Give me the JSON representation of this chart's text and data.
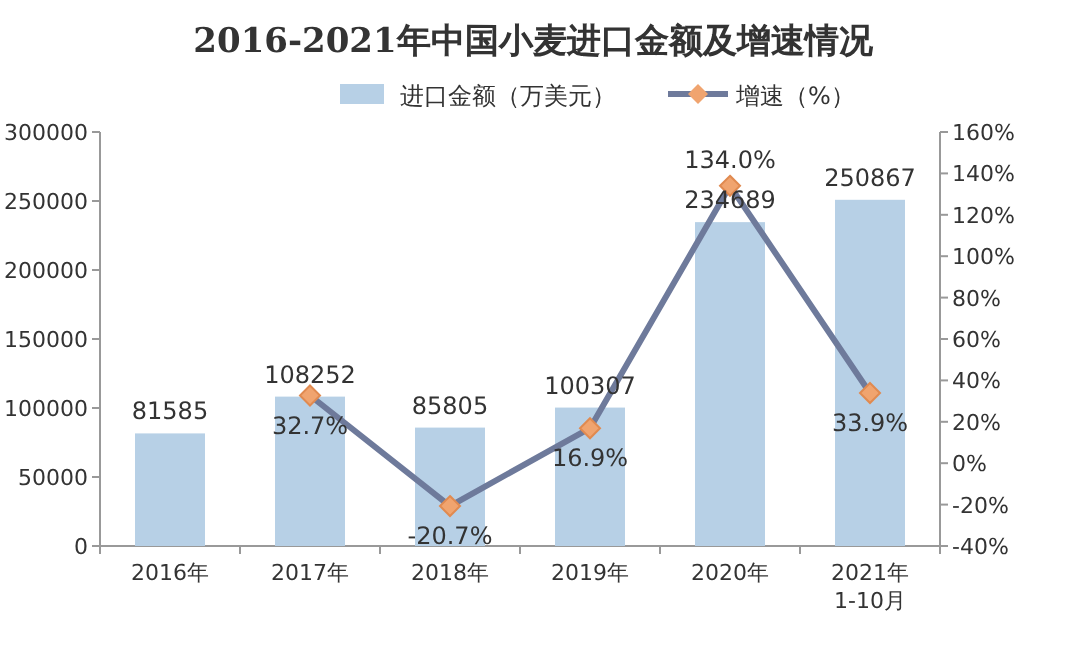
{
  "chart_data": {
    "type": "bar",
    "title": "2016-2021年中国小麦进口金额及增速情况",
    "categories": [
      "2016年",
      "2017年",
      "2018年",
      "2019年",
      "2020年",
      "2021年\n1-10月"
    ],
    "series": [
      {
        "name": "进口金额（万美元）",
        "color": "#b7d0e6",
        "values": [
          81585,
          108252,
          85805,
          100307,
          234689,
          250867
        ],
        "value_labels": [
          "81585",
          "108252",
          "85805",
          "100307",
          "234689",
          "250867"
        ]
      },
      {
        "name": "增速（%）",
        "type": "line",
        "axis": "y2",
        "color": "#6e7a9b",
        "marker": "diamond",
        "values": [
          null,
          32.7,
          -20.7,
          16.9,
          134.0,
          33.9
        ],
        "value_labels": [
          null,
          "32.7%",
          "-20.7%",
          "16.9%",
          "134.0%",
          "33.9%"
        ]
      }
    ],
    "ylim": [
      0,
      300000
    ],
    "yticks": [
      0,
      50000,
      100000,
      150000,
      200000,
      250000,
      300000
    ],
    "y2lim": [
      -40,
      160
    ],
    "y2ticks": [
      {
        "value": -40,
        "label": "-40%"
      },
      {
        "value": -20,
        "label": "-20%"
      },
      {
        "value": 0,
        "label": "0%"
      },
      {
        "value": 20,
        "label": "20%"
      },
      {
        "value": 40,
        "label": "40%"
      },
      {
        "value": 60,
        "label": "60%"
      },
      {
        "value": 80,
        "label": "80%"
      },
      {
        "value": 100,
        "label": "100%"
      },
      {
        "value": 120,
        "label": "120%"
      },
      {
        "value": 140,
        "label": "140%"
      },
      {
        "value": 160,
        "label": "160%"
      }
    ],
    "legend": "top",
    "grid": false
  }
}
